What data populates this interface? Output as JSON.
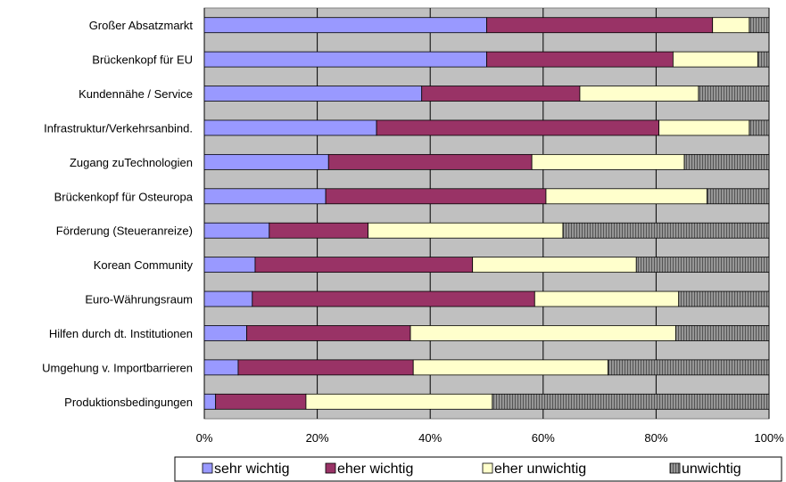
{
  "chart_data": {
    "type": "bar",
    "orientation": "horizontal",
    "stacked": "percent",
    "categories": [
      "Großer Absatzmarkt",
      "Brückenkopf für EU",
      "Kundennähe / Service",
      "Infrastruktur/Verkehrsanbind.",
      "Zugang zuTechnologien",
      "Brückenkopf für Osteuropa",
      "Förderung (Steueranreize)",
      "Korean Community",
      "Euro-Währungsraum",
      "Hilfen durch dt. Institutionen",
      "Umgehung v. Importbarrieren",
      "Produktionsbedingungen"
    ],
    "series": [
      {
        "name": "sehr wichtig",
        "color": "#9999ff",
        "values": [
          50,
          50,
          38.5,
          30.5,
          22,
          21.5,
          11.5,
          9,
          8.5,
          7.5,
          6,
          2
        ]
      },
      {
        "name": "eher wichtig",
        "color": "#993366",
        "values": [
          40,
          33,
          28,
          50,
          36,
          39,
          17.5,
          38.5,
          50,
          29,
          31,
          16
        ]
      },
      {
        "name": "eher unwichtig",
        "color": "#ffffcc",
        "values": [
          6.5,
          15,
          21,
          16,
          27,
          28.5,
          34.5,
          29,
          25.5,
          47,
          34.5,
          33
        ]
      },
      {
        "name": "unwichtig",
        "color": "#969696",
        "values": [
          3.5,
          2,
          12.5,
          3.5,
          15,
          11,
          36.5,
          23.5,
          16,
          16.5,
          28.5,
          49
        ]
      }
    ],
    "xlim": [
      0,
      100
    ],
    "x_ticks": [
      "0%",
      "20%",
      "40%",
      "60%",
      "80%",
      "100%"
    ],
    "grid": true,
    "plot_background": "#c0c0c0",
    "legend_position": "bottom"
  }
}
